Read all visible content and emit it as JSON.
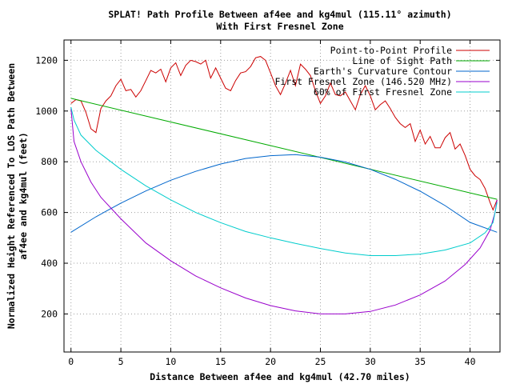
{
  "chart_data": {
    "type": "line",
    "title": "SPLAT! Path Profile Between af4ee and kg4mul (115.11° azimuth)",
    "subtitle": "With First Fresnel Zone",
    "xlabel": "Distance Between af4ee and kg4mul (42.70 miles)",
    "ylabel_line1": "Normalized Height Referenced To LOS Path Between",
    "ylabel_line2": "af4ee and kg4mul (feet)",
    "xlim": [
      -0.7,
      43.0
    ],
    "ylim": [
      50,
      1280
    ],
    "xticks": [
      0,
      5,
      10,
      15,
      20,
      25,
      30,
      35,
      40
    ],
    "yticks": [
      200,
      400,
      600,
      800,
      1000,
      1200
    ],
    "grid": true,
    "legend_position": "top-right",
    "series": [
      {
        "name": "Point-to-Point Profile",
        "color": "#cc0000",
        "x": [
          0,
          0.5,
          1,
          1.5,
          2,
          2.5,
          3,
          3.5,
          4,
          4.5,
          5,
          5.5,
          6,
          6.5,
          7,
          7.5,
          8,
          8.5,
          9,
          9.5,
          10,
          10.5,
          11,
          11.5,
          12,
          12.5,
          13,
          13.5,
          14,
          14.5,
          15,
          15.5,
          16,
          16.5,
          17,
          17.5,
          18,
          18.5,
          19,
          19.5,
          20,
          20.5,
          21,
          21.5,
          22,
          22.5,
          23,
          23.5,
          24,
          24.5,
          25,
          25.5,
          26,
          26.5,
          27,
          27.5,
          28,
          28.5,
          29,
          29.5,
          30,
          30.5,
          31,
          31.5,
          32,
          32.5,
          33,
          33.5,
          34,
          34.5,
          35,
          35.5,
          36,
          36.5,
          37,
          37.5,
          38,
          38.5,
          39,
          39.5,
          40,
          40.5,
          41,
          41.5,
          42,
          42.3,
          42.7
        ],
        "y": [
          1030,
          1045,
          1040,
          995,
          930,
          915,
          1010,
          1040,
          1060,
          1100,
          1125,
          1080,
          1085,
          1055,
          1080,
          1120,
          1160,
          1150,
          1165,
          1115,
          1170,
          1190,
          1140,
          1180,
          1200,
          1195,
          1185,
          1200,
          1130,
          1170,
          1130,
          1090,
          1080,
          1120,
          1150,
          1155,
          1175,
          1210,
          1215,
          1200,
          1150,
          1100,
          1065,
          1110,
          1160,
          1100,
          1185,
          1165,
          1140,
          1080,
          1030,
          1060,
          1110,
          1065,
          1060,
          1075,
          1040,
          1005,
          1065,
          1100,
          1060,
          1005,
          1025,
          1040,
          1010,
          975,
          950,
          935,
          950,
          880,
          925,
          870,
          900,
          855,
          855,
          895,
          915,
          850,
          870,
          825,
          770,
          745,
          730,
          695,
          640,
          610,
          650
        ]
      },
      {
        "name": "Line of Sight Path",
        "color": "#00aa00",
        "x": [
          0,
          42.7
        ],
        "y": [
          1050,
          652
        ]
      },
      {
        "name": "Earth's Curvature Contour",
        "color": "#0066cc",
        "x": [
          0,
          2.5,
          5,
          7.5,
          10,
          12.5,
          15,
          17.5,
          20,
          22.5,
          25,
          27.5,
          30,
          32.5,
          35,
          37.5,
          40,
          42.7
        ],
        "y": [
          522,
          583,
          637,
          685,
          727,
          762,
          791,
          813,
          824,
          828,
          818,
          799,
          770,
          731,
          684,
          627,
          561,
          522
        ]
      },
      {
        "name": "First Fresnel Zone (146.520 MHz)",
        "color": "#9900cc",
        "x": [
          0,
          0.3,
          1,
          2,
          3,
          5,
          7.5,
          10,
          12.5,
          15,
          17.5,
          20,
          22.5,
          25,
          27.5,
          30,
          32.5,
          35,
          37.5,
          39.5,
          41,
          42,
          42.5,
          42.7
        ],
        "y": [
          1010,
          880,
          800,
          720,
          660,
          575,
          480,
          410,
          350,
          303,
          263,
          233,
          212,
          200,
          200,
          210,
          235,
          275,
          330,
          395,
          460,
          530,
          600,
          650
        ]
      },
      {
        "name": "60% of First Fresnel Zone",
        "color": "#00cccc",
        "x": [
          0,
          0.3,
          1,
          2.5,
          5,
          7.5,
          10,
          12.5,
          15,
          17.5,
          20,
          22.5,
          25,
          27.5,
          30,
          32.5,
          35,
          37.5,
          40,
          41.5,
          42.3,
          42.7
        ],
        "y": [
          1015,
          965,
          905,
          845,
          770,
          705,
          650,
          600,
          560,
          525,
          500,
          478,
          458,
          440,
          430,
          430,
          436,
          452,
          480,
          520,
          560,
          640
        ]
      }
    ]
  }
}
